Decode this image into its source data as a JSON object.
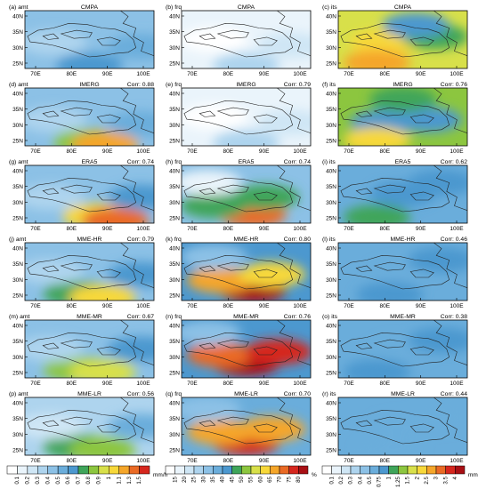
{
  "figure": {
    "columns": [
      {
        "var": "amt",
        "cb_labels": [
          "0.1",
          "0.2",
          "0.3",
          "0.4",
          "0.5",
          "0.6",
          "0.7",
          "0.8",
          "0.9",
          "1",
          "1.1",
          "1.3",
          "1.5"
        ],
        "unit": "mm/h",
        "colors": [
          "#ffffff",
          "#eaf4fb",
          "#cfe6f5",
          "#aed4ee",
          "#8cc1e6",
          "#6aaddb",
          "#4c98cf",
          "#3fa55a",
          "#8cc63f",
          "#d8e04a",
          "#f7d83a",
          "#f5a62a",
          "#ea6a25",
          "#d6271e",
          "#a80f14"
        ]
      },
      {
        "var": "frq",
        "cb_labels": [
          "15",
          "20",
          "25",
          "30",
          "35",
          "40",
          "45",
          "50",
          "55",
          "60",
          "65",
          "70",
          "75",
          "80"
        ],
        "unit": "%",
        "colors": [
          "#ffffff",
          "#eaf4fb",
          "#cfe6f5",
          "#aed4ee",
          "#8cc1e6",
          "#6aaddb",
          "#4c98cf",
          "#3fa55a",
          "#8cc63f",
          "#d8e04a",
          "#f7d83a",
          "#f5a62a",
          "#ea6a25",
          "#d6271e",
          "#a80f14"
        ]
      },
      {
        "var": "its",
        "cb_labels": [
          "0.1",
          "0.2",
          "0.3",
          "0.4",
          "0.5",
          "0.75",
          "1",
          "1.25",
          "1.5",
          "2",
          "2.5",
          "3",
          "3.5",
          "4"
        ],
        "unit": "mm/h",
        "colors": [
          "#ffffff",
          "#eaf4fb",
          "#cfe6f5",
          "#aed4ee",
          "#8cc1e6",
          "#6aaddb",
          "#4c98cf",
          "#3fa55a",
          "#8cc63f",
          "#d8e04a",
          "#f7d83a",
          "#f5a62a",
          "#ea6a25",
          "#d6271e",
          "#a80f14"
        ]
      }
    ],
    "x_ticks": [
      "70E",
      "80E",
      "90E",
      "100E"
    ],
    "y_ticks": [
      "40N",
      "35N",
      "30N",
      "25N"
    ],
    "panels": [
      {
        "label": "(a) amt",
        "title": "CMPA",
        "corr": "",
        "bg": 4,
        "s": [
          [
            0.5,
            0.95,
            6
          ],
          [
            0.22,
            0.55,
            3
          ],
          [
            0.9,
            0.62,
            5
          ]
        ]
      },
      {
        "label": "(b) frq",
        "title": "CMPA",
        "corr": "",
        "bg": 1,
        "s": [
          [
            0.5,
            0.95,
            3
          ],
          [
            0.25,
            0.5,
            0
          ],
          [
            0.85,
            0.6,
            2
          ]
        ]
      },
      {
        "label": "(c) its",
        "title": "CMPA",
        "corr": "",
        "bg": 9,
        "s": [
          [
            0.35,
            0.55,
            10
          ],
          [
            0.3,
            0.9,
            11
          ],
          [
            0.75,
            0.45,
            7
          ],
          [
            0.6,
            0.25,
            6
          ]
        ]
      },
      {
        "label": "(d) amt",
        "title": "IMERG",
        "corr": "Corr: 0.88",
        "bg": 4,
        "s": [
          [
            0.48,
            0.93,
            8
          ],
          [
            0.62,
            0.98,
            11
          ],
          [
            0.22,
            0.55,
            3
          ],
          [
            0.9,
            0.62,
            5
          ]
        ]
      },
      {
        "label": "(e) frq",
        "title": "IMERG",
        "corr": "Corr: 0.79",
        "bg": 1,
        "s": [
          [
            0.5,
            0.95,
            3
          ],
          [
            0.25,
            0.5,
            0
          ],
          [
            0.85,
            0.6,
            2
          ]
        ]
      },
      {
        "label": "(f) its",
        "title": "IMERG",
        "corr": "Corr: 0.76",
        "bg": 8,
        "s": [
          [
            0.35,
            0.6,
            6
          ],
          [
            0.3,
            0.9,
            10
          ],
          [
            0.7,
            0.55,
            6
          ],
          [
            0.5,
            0.2,
            7
          ]
        ]
      },
      {
        "label": "(g) amt",
        "title": "ERA5",
        "corr": "Corr: 0.74",
        "bg": 4,
        "s": [
          [
            0.55,
            0.88,
            10
          ],
          [
            0.7,
            0.95,
            12
          ],
          [
            0.2,
            0.55,
            3
          ],
          [
            0.9,
            0.55,
            6
          ]
        ]
      },
      {
        "label": "(h) frq",
        "title": "ERA5",
        "corr": "Corr: 0.74",
        "bg": 4,
        "s": [
          [
            0.55,
            0.85,
            12
          ],
          [
            0.25,
            0.7,
            7
          ],
          [
            0.65,
            0.55,
            7
          ],
          [
            0.2,
            0.3,
            1
          ]
        ]
      },
      {
        "label": "(i) its",
        "title": "ERA5",
        "corr": "Corr: 0.62",
        "bg": 5,
        "s": [
          [
            0.5,
            0.5,
            6
          ],
          [
            0.3,
            0.9,
            7
          ],
          [
            0.8,
            0.3,
            6
          ]
        ]
      },
      {
        "label": "(j) amt",
        "title": "MME-HR",
        "corr": "Corr: 0.79",
        "bg": 4,
        "s": [
          [
            0.4,
            0.88,
            7
          ],
          [
            0.6,
            0.95,
            10
          ],
          [
            0.2,
            0.5,
            3
          ],
          [
            0.9,
            0.55,
            6
          ]
        ]
      },
      {
        "label": "(k) frq",
        "title": "MME-HR",
        "corr": "Corr: 0.80",
        "bg": 6,
        "s": [
          [
            0.55,
            0.82,
            14
          ],
          [
            0.3,
            0.65,
            11
          ],
          [
            0.7,
            0.55,
            10
          ],
          [
            0.25,
            0.25,
            4
          ]
        ]
      },
      {
        "label": "(l) its",
        "title": "MME-HR",
        "corr": "Corr: 0.46",
        "bg": 5,
        "s": [
          [
            0.5,
            0.5,
            5
          ],
          [
            0.4,
            0.9,
            6
          ],
          [
            0.8,
            0.3,
            6
          ]
        ]
      },
      {
        "label": "(m) amt",
        "title": "MME-MR",
        "corr": "Corr: 0.67",
        "bg": 4,
        "s": [
          [
            0.4,
            0.85,
            8
          ],
          [
            0.6,
            0.9,
            9
          ],
          [
            0.2,
            0.5,
            3
          ],
          [
            0.9,
            0.5,
            6
          ]
        ]
      },
      {
        "label": "(n) frq",
        "title": "MME-MR",
        "corr": "Corr: 0.76",
        "bg": 6,
        "s": [
          [
            0.5,
            0.75,
            14
          ],
          [
            0.3,
            0.6,
            12
          ],
          [
            0.75,
            0.55,
            13
          ],
          [
            0.2,
            0.22,
            4
          ]
        ]
      },
      {
        "label": "(o) its",
        "title": "MME-MR",
        "corr": "Corr: 0.38",
        "bg": 5,
        "s": [
          [
            0.5,
            0.5,
            5
          ],
          [
            0.3,
            0.9,
            6
          ],
          [
            0.8,
            0.35,
            6
          ]
        ]
      },
      {
        "label": "(p) amt",
        "title": "MME-LR",
        "corr": "Corr: 0.56",
        "bg": 3,
        "s": [
          [
            0.4,
            0.85,
            7
          ],
          [
            0.6,
            0.9,
            8
          ],
          [
            0.2,
            0.5,
            2
          ],
          [
            0.9,
            0.5,
            5
          ]
        ]
      },
      {
        "label": "(q) frq",
        "title": "MME-LR",
        "corr": "Corr: 0.70",
        "bg": 5,
        "s": [
          [
            0.5,
            0.78,
            13
          ],
          [
            0.3,
            0.6,
            11
          ],
          [
            0.7,
            0.55,
            11
          ],
          [
            0.2,
            0.2,
            4
          ]
        ]
      },
      {
        "label": "(r) its",
        "title": "MME-LR",
        "corr": "Corr: 0.44",
        "bg": 5,
        "s": [
          [
            0.5,
            0.5,
            5
          ],
          [
            0.4,
            0.9,
            5
          ],
          [
            0.8,
            0.35,
            5
          ]
        ]
      }
    ]
  },
  "chart_data": [
    {
      "type": "heatmap",
      "title": "CMPA",
      "variable": "amt",
      "panel": "(a)",
      "unit": "mm/h"
    },
    {
      "type": "heatmap",
      "title": "CMPA",
      "variable": "frq",
      "panel": "(b)",
      "unit": "%"
    },
    {
      "type": "heatmap",
      "title": "CMPA",
      "variable": "its",
      "panel": "(c)",
      "unit": "mm/h"
    },
    {
      "type": "heatmap",
      "title": "IMERG",
      "variable": "amt",
      "panel": "(d)",
      "corr": 0.88,
      "unit": "mm/h"
    },
    {
      "type": "heatmap",
      "title": "IMERG",
      "variable": "frq",
      "panel": "(e)",
      "corr": 0.79,
      "unit": "%"
    },
    {
      "type": "heatmap",
      "title": "IMERG",
      "variable": "its",
      "panel": "(f)",
      "corr": 0.76,
      "unit": "mm/h"
    },
    {
      "type": "heatmap",
      "title": "ERA5",
      "variable": "amt",
      "panel": "(g)",
      "corr": 0.74,
      "unit": "mm/h"
    },
    {
      "type": "heatmap",
      "title": "ERA5",
      "variable": "frq",
      "panel": "(h)",
      "corr": 0.74,
      "unit": "%"
    },
    {
      "type": "heatmap",
      "title": "ERA5",
      "variable": "its",
      "panel": "(i)",
      "corr": 0.62,
      "unit": "mm/h"
    },
    {
      "type": "heatmap",
      "title": "MME-HR",
      "variable": "amt",
      "panel": "(j)",
      "corr": 0.79,
      "unit": "mm/h"
    },
    {
      "type": "heatmap",
      "title": "MME-HR",
      "variable": "frq",
      "panel": "(k)",
      "corr": 0.8,
      "unit": "%"
    },
    {
      "type": "heatmap",
      "title": "MME-HR",
      "variable": "its",
      "panel": "(l)",
      "corr": 0.46,
      "unit": "mm/h"
    },
    {
      "type": "heatmap",
      "title": "MME-MR",
      "variable": "amt",
      "panel": "(m)",
      "corr": 0.67,
      "unit": "mm/h"
    },
    {
      "type": "heatmap",
      "title": "MME-MR",
      "variable": "frq",
      "panel": "(n)",
      "corr": 0.76,
      "unit": "%"
    },
    {
      "type": "heatmap",
      "title": "MME-MR",
      "variable": "its",
      "panel": "(o)",
      "corr": 0.38,
      "unit": "mm/h"
    },
    {
      "type": "heatmap",
      "title": "MME-LR",
      "variable": "amt",
      "panel": "(p)",
      "corr": 0.56,
      "unit": "mm/h"
    },
    {
      "type": "heatmap",
      "title": "MME-LR",
      "variable": "frq",
      "panel": "(q)",
      "corr": 0.7,
      "unit": "%"
    },
    {
      "type": "heatmap",
      "title": "MME-LR",
      "variable": "its",
      "panel": "(r)",
      "corr": 0.44,
      "unit": "mm/h"
    }
  ]
}
